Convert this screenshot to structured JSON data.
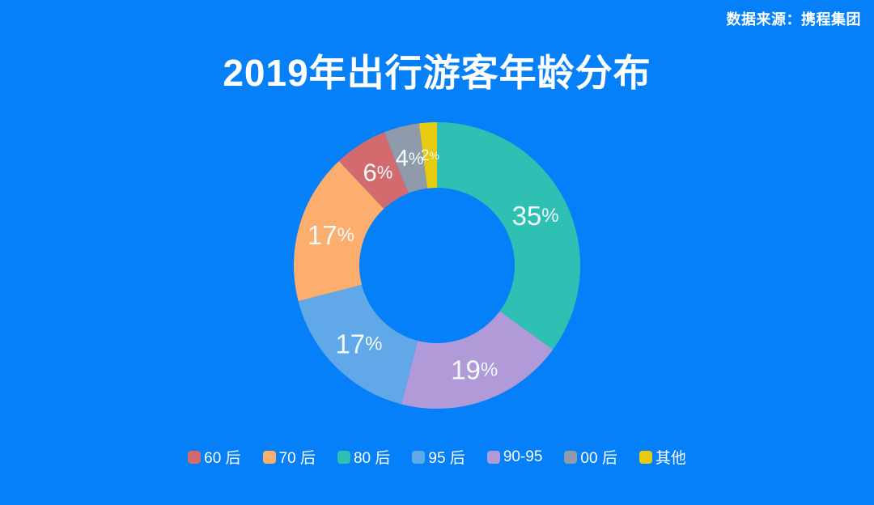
{
  "colors": {
    "background": "#0580F8",
    "title_text": "#FFFFFF",
    "legend_text": "#FFFFFF",
    "slice_label_text": "#F2FAFC"
  },
  "header": {
    "source": "数据来源：携程集团"
  },
  "chart_data": {
    "type": "pie",
    "subtype": "donut",
    "title": "2019年出行游客年龄分布",
    "direction": "clockwise",
    "start_angle_deg": 0,
    "inner_radius_ratio": 0.54,
    "grid": false,
    "legend_position": "bottom",
    "segments": [
      {
        "label": "80 后",
        "value": 35,
        "display": "35%",
        "color": "#2EC0B3"
      },
      {
        "label": "90-95",
        "value": 19,
        "display": "19%",
        "color": "#B09AD8"
      },
      {
        "label": "95 后",
        "value": 17,
        "display": "17%",
        "color": "#60A8E8"
      },
      {
        "label": "70 后",
        "value": 17,
        "display": "17%",
        "color": "#FBAE6D"
      },
      {
        "label": "60 后",
        "value": 6,
        "display": "6%",
        "color": "#D36B6E"
      },
      {
        "label": "00 后",
        "value": 4,
        "display": "4%",
        "color": "#8F9AAB"
      },
      {
        "label": "其他",
        "value": 2,
        "display": "2%",
        "color": "#E7CB10"
      }
    ],
    "legend_order": [
      "60 后",
      "70 后",
      "80 后",
      "95 后",
      "90-95",
      "00 后",
      "其他"
    ]
  }
}
